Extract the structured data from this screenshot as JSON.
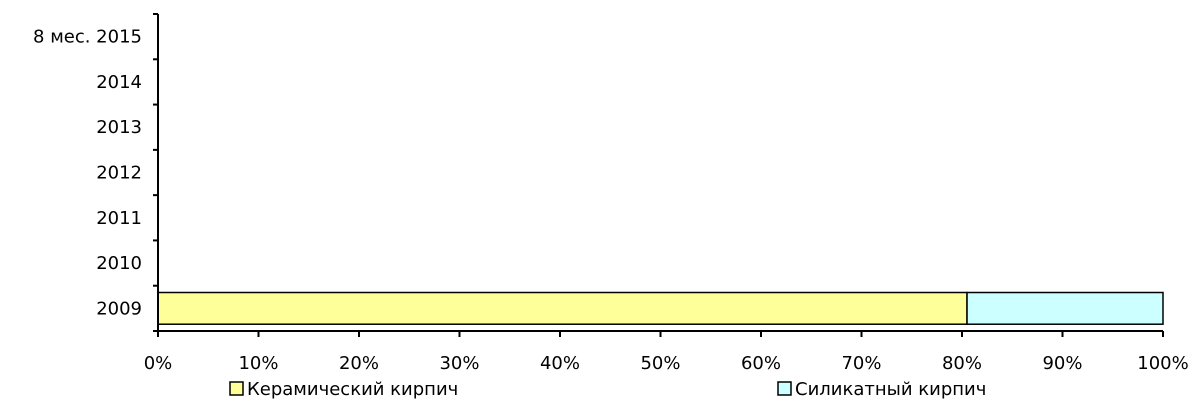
{
  "chart_data": {
    "type": "bar",
    "orientation": "horizontal",
    "stacked": true,
    "categories": [
      "2009",
      "2010",
      "2011",
      "2012",
      "2013",
      "2014",
      "8 мес. 2015"
    ],
    "series": [
      {
        "name": "Керамический кирпич",
        "color": "#ffff99",
        "values": [
          80.5,
          null,
          null,
          null,
          null,
          null,
          null
        ]
      },
      {
        "name": "Силикатный кирпич",
        "color": "#ccffff",
        "values": [
          19.5,
          null,
          null,
          null,
          null,
          null,
          null
        ]
      }
    ],
    "xlim": [
      0,
      100
    ],
    "xticks": [
      "0%",
      "10%",
      "20%",
      "30%",
      "40%",
      "50%",
      "60%",
      "70%",
      "80%",
      "90%",
      "100%"
    ],
    "title": "",
    "xlabel": "",
    "ylabel": "",
    "grid": false,
    "legend_position": "bottom"
  }
}
